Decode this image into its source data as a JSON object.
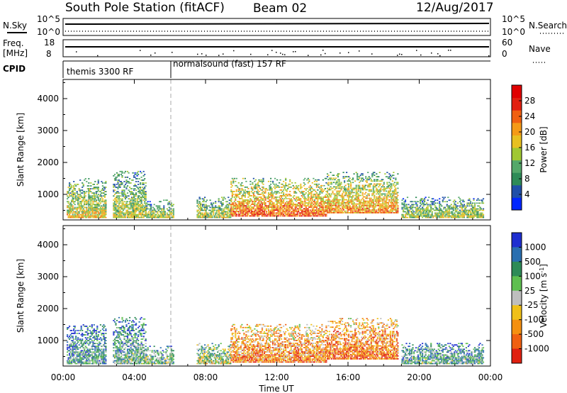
{
  "header": {
    "title": "South Pole Station (fitACF)",
    "beam": "Beam 02",
    "date": "12/Aug/2017"
  },
  "strip": {
    "nsky_label": "N.Sky",
    "nsky_ticks": [
      "10^5",
      "10^0"
    ],
    "nsearch_label": "N.Search",
    "freq_label_1": "Freq.",
    "freq_label_2": "[MHz]",
    "freq_ticks": [
      "18",
      "8"
    ],
    "nave_label": "Nave",
    "nave_ticks": [
      "60",
      "0"
    ],
    "cpid_label": "CPID",
    "cpid_1": "themis 3300 RF",
    "cpid_2": "normalsound (fast) 157 RF"
  },
  "chart_data": [
    {
      "type": "heatmap",
      "quantity": "Power",
      "xlabel": "Time UT",
      "ylabel": "Slant Range [km]",
      "x_ticks": [
        "00:00",
        "04:00",
        "08:00",
        "12:00",
        "16:00",
        "20:00",
        "00:00"
      ],
      "xlim": [
        0,
        24
      ],
      "y_ticks": [
        1000,
        2000,
        3000,
        4000
      ],
      "ylim": [
        200,
        4600
      ],
      "colorbar_label": "Power [dB]",
      "colorbar_ticks": [
        "4",
        "8",
        "12",
        "16",
        "20",
        "24",
        "28"
      ],
      "colorbar_range": [
        0,
        32
      ],
      "colors": [
        "#0026ff",
        "#1f4fa8",
        "#2e8b57",
        "#54a86a",
        "#a0c832",
        "#e8c020",
        "#f59a16",
        "#f06010",
        "#e22010",
        "#e00000"
      ],
      "cpid_change_time": 6.0,
      "echo_regions": [
        {
          "t0": 0.2,
          "t1": 2.4,
          "r0": 250,
          "r1": 1500,
          "level": 0.55
        },
        {
          "t0": 2.8,
          "t1": 4.6,
          "r0": 250,
          "r1": 1700,
          "level": 0.5
        },
        {
          "t0": 4.6,
          "t1": 6.2,
          "r0": 250,
          "r1": 800,
          "level": 0.45
        },
        {
          "t0": 7.5,
          "t1": 9.4,
          "r0": 250,
          "r1": 900,
          "level": 0.5
        },
        {
          "t0": 9.4,
          "t1": 14.8,
          "r0": 300,
          "r1": 1500,
          "level": 0.8
        },
        {
          "t0": 14.8,
          "t1": 18.8,
          "r0": 400,
          "r1": 1700,
          "level": 0.7
        },
        {
          "t0": 19.0,
          "t1": 23.6,
          "r0": 250,
          "r1": 900,
          "level": 0.45
        }
      ]
    },
    {
      "type": "heatmap",
      "quantity": "Velocity",
      "xlabel": "Time UT",
      "ylabel": "Slant Range [km]",
      "x_ticks": [
        "00:00",
        "04:00",
        "08:00",
        "12:00",
        "16:00",
        "20:00",
        "00:00"
      ],
      "xlim": [
        0,
        24
      ],
      "y_ticks": [
        1000,
        2000,
        3000,
        4000
      ],
      "ylim": [
        200,
        4600
      ],
      "colorbar_label": "Velocity [m s^-1]",
      "colorbar_ticks": [
        "1000",
        "500",
        "100",
        "25",
        "-25",
        "-100",
        "-500",
        "-1000"
      ],
      "colors": [
        "#1e2fd0",
        "#2a6fb0",
        "#2e8b57",
        "#5fbf50",
        "#bebebe",
        "#f0c018",
        "#f59010",
        "#f06010",
        "#e02010"
      ],
      "cpid_change_time": 6.0,
      "echo_regions": [
        {
          "t0": 0.2,
          "t1": 2.4,
          "r0": 250,
          "r1": 1500,
          "bias": 0.3
        },
        {
          "t0": 2.8,
          "t1": 4.6,
          "r0": 250,
          "r1": 1700,
          "bias": 0.35
        },
        {
          "t0": 4.6,
          "t1": 6.2,
          "r0": 250,
          "r1": 800,
          "bias": 0.4
        },
        {
          "t0": 7.5,
          "t1": 9.4,
          "r0": 250,
          "r1": 900,
          "bias": 0.5
        },
        {
          "t0": 9.4,
          "t1": 14.8,
          "r0": 300,
          "r1": 1500,
          "bias": 0.8
        },
        {
          "t0": 14.8,
          "t1": 18.8,
          "r0": 400,
          "r1": 1700,
          "bias": 0.85
        },
        {
          "t0": 19.0,
          "t1": 23.6,
          "r0": 250,
          "r1": 900,
          "bias": 0.35
        }
      ]
    }
  ]
}
